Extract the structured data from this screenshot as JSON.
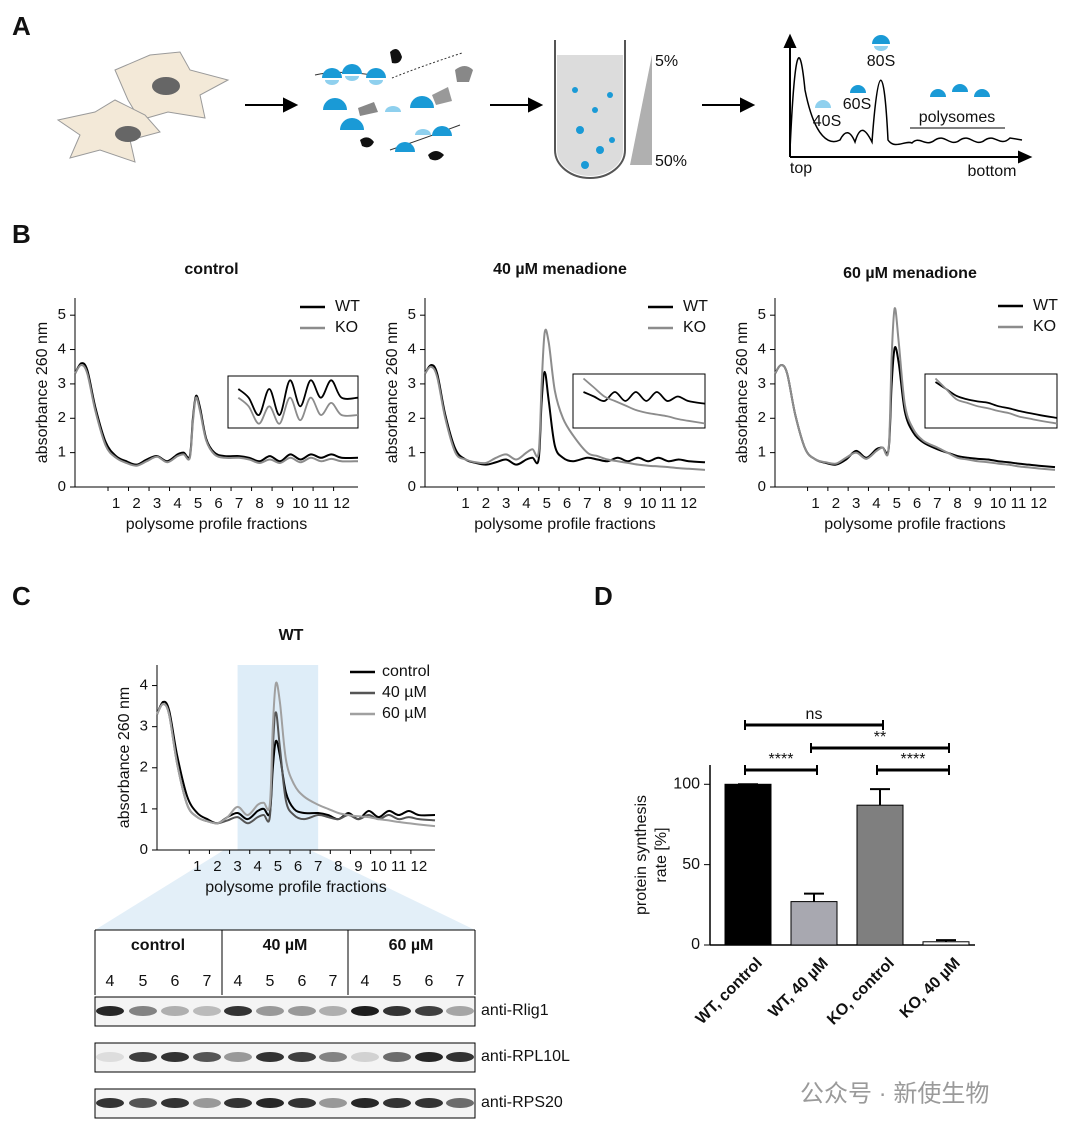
{
  "panel_labels": [
    "A",
    "B",
    "C",
    "D"
  ],
  "schematic": {
    "gradient_top": "5%",
    "gradient_bottom": "50%",
    "peaks": [
      "40S",
      "60S",
      "80S"
    ],
    "polysomes": "polysomes",
    "axis_start": "top",
    "axis_end": "bottom"
  },
  "chart_data": [
    {
      "type": "line",
      "title": "control",
      "xlabel": "polysome profile fractions",
      "ylabel": "absorbance 260 nm",
      "legend": "upper right",
      "inset_xlim": [
        6.5,
        12.8
      ],
      "x": [
        -1,
        -0.7,
        -0.4,
        0,
        0.5,
        1,
        1.5,
        2,
        2.5,
        3,
        3.5,
        4,
        4.3,
        4.6,
        4.75,
        4.9,
        5.1,
        5.4,
        5.8,
        6.3,
        7,
        7.5,
        8,
        8.5,
        9,
        9.5,
        10,
        10.5,
        11,
        11.5,
        12,
        12.8
      ],
      "series": [
        {
          "name": "WT",
          "color": "#000000",
          "values": [
            3.3,
            3.6,
            3.4,
            2.3,
            1.3,
            0.9,
            0.75,
            0.65,
            0.8,
            0.9,
            0.75,
            0.95,
            1.0,
            0.9,
            2.0,
            2.65,
            2.3,
            1.4,
            1.0,
            0.9,
            0.9,
            0.85,
            0.75,
            0.9,
            0.75,
            0.95,
            0.8,
            0.95,
            0.85,
            0.95,
            0.85,
            0.85
          ]
        },
        {
          "name": "KO",
          "color": "#8c8c8c",
          "values": [
            3.3,
            3.55,
            3.3,
            2.2,
            1.2,
            0.85,
            0.7,
            0.62,
            0.75,
            0.88,
            0.72,
            0.9,
            0.95,
            0.85,
            1.9,
            2.6,
            2.2,
            1.35,
            0.95,
            0.85,
            0.85,
            0.8,
            0.7,
            0.8,
            0.7,
            0.85,
            0.72,
            0.85,
            0.75,
            0.82,
            0.75,
            0.75
          ]
        }
      ],
      "xlim": [
        -1,
        12.8
      ],
      "ylim": [
        0,
        5.5
      ],
      "xticks": [
        1,
        2,
        3,
        4,
        5,
        6,
        7,
        8,
        9,
        10,
        11,
        12
      ],
      "yticks": [
        0,
        1,
        2,
        3,
        4,
        5
      ]
    },
    {
      "type": "line",
      "title": "40 µM menadione",
      "xlabel": "polysome profile fractions",
      "ylabel": "absorbance 260 nm",
      "legend": "upper right",
      "inset_xlim": [
        6.5,
        12.8
      ],
      "x": [
        -1,
        -0.7,
        -0.4,
        0,
        0.5,
        1,
        1.5,
        2,
        2.5,
        3,
        3.5,
        4,
        4.3,
        4.6,
        4.75,
        4.9,
        5.1,
        5.4,
        5.8,
        6.3,
        7,
        7.5,
        8,
        8.5,
        9,
        9.5,
        10,
        10.5,
        11,
        11.5,
        12,
        12.8
      ],
      "series": [
        {
          "name": "WT",
          "color": "#000000",
          "values": [
            3.3,
            3.55,
            3.3,
            2.1,
            1.1,
            0.8,
            0.7,
            0.65,
            0.72,
            0.8,
            0.65,
            0.8,
            0.85,
            0.8,
            2.5,
            3.35,
            2.5,
            1.2,
            0.85,
            0.75,
            0.85,
            0.8,
            0.75,
            0.85,
            0.75,
            0.85,
            0.75,
            0.85,
            0.75,
            0.8,
            0.75,
            0.72
          ]
        },
        {
          "name": "KO",
          "color": "#8c8c8c",
          "values": [
            3.3,
            3.5,
            3.2,
            2.0,
            1.0,
            0.8,
            0.72,
            0.7,
            0.85,
            0.95,
            0.8,
            1.0,
            1.1,
            1.0,
            3.0,
            4.5,
            4.2,
            2.8,
            2.0,
            1.5,
            1.0,
            0.9,
            0.8,
            0.75,
            0.7,
            0.65,
            0.62,
            0.6,
            0.58,
            0.55,
            0.53,
            0.5
          ]
        }
      ],
      "xlim": [
        -1,
        12.8
      ],
      "ylim": [
        0,
        5.5
      ],
      "xticks": [
        1,
        2,
        3,
        4,
        5,
        6,
        7,
        8,
        9,
        10,
        11,
        12
      ],
      "yticks": [
        0,
        1,
        2,
        3,
        4,
        5
      ]
    },
    {
      "type": "line",
      "title": "60 µM menadione",
      "xlabel": "polysome profile fractions",
      "ylabel": "absorbance 260 nm",
      "legend": "upper right",
      "inset_xlim": [
        6.5,
        12.8
      ],
      "x": [
        -1,
        -0.7,
        -0.4,
        0,
        0.5,
        1,
        1.5,
        2,
        2.5,
        3,
        3.5,
        4,
        4.3,
        4.6,
        4.75,
        4.9,
        5.1,
        5.4,
        5.8,
        6.3,
        7,
        7.5,
        8,
        8.5,
        9,
        9.5,
        10,
        10.5,
        11,
        11.5,
        12,
        12.8
      ],
      "series": [
        {
          "name": "WT",
          "color": "#000000",
          "values": [
            3.3,
            3.55,
            3.3,
            2.1,
            1.1,
            0.8,
            0.7,
            0.65,
            0.8,
            1.05,
            0.85,
            1.1,
            1.15,
            1.1,
            3.0,
            4.05,
            3.6,
            2.2,
            1.6,
            1.3,
            1.1,
            1.0,
            0.9,
            0.85,
            0.82,
            0.8,
            0.75,
            0.72,
            0.68,
            0.65,
            0.62,
            0.58
          ]
        },
        {
          "name": "KO",
          "color": "#8c8c8c",
          "values": [
            3.3,
            3.55,
            3.3,
            2.1,
            1.1,
            0.8,
            0.72,
            0.68,
            0.85,
            1.0,
            0.82,
            1.05,
            1.15,
            1.1,
            3.8,
            5.2,
            4.2,
            2.4,
            1.7,
            1.35,
            1.15,
            1.0,
            0.85,
            0.8,
            0.75,
            0.72,
            0.68,
            0.65,
            0.6,
            0.57,
            0.54,
            0.5
          ]
        }
      ],
      "xlim": [
        -1,
        12.8
      ],
      "ylim": [
        0,
        5.5
      ],
      "xticks": [
        1,
        2,
        3,
        4,
        5,
        6,
        7,
        8,
        9,
        10,
        11,
        12
      ],
      "yticks": [
        0,
        1,
        2,
        3,
        4,
        5
      ]
    },
    {
      "type": "line",
      "title": "WT",
      "xlabel": "polysome profile fractions",
      "ylabel": "absorbance 260 nm",
      "legend": "upper right",
      "highlight": [
        3,
        7
      ],
      "x": [
        -1,
        -0.7,
        -0.4,
        0,
        0.5,
        1,
        1.5,
        2,
        2.5,
        3,
        3.5,
        4,
        4.3,
        4.6,
        4.75,
        4.9,
        5.1,
        5.4,
        5.8,
        6.3,
        7,
        7.5,
        8,
        8.5,
        9,
        9.5,
        10,
        10.5,
        11,
        11.5,
        12,
        12.8
      ],
      "series": [
        {
          "name": "control",
          "color": "#000000",
          "values": [
            3.3,
            3.6,
            3.4,
            2.3,
            1.3,
            0.9,
            0.75,
            0.65,
            0.8,
            0.9,
            0.75,
            0.95,
            1.0,
            0.9,
            2.0,
            2.65,
            2.3,
            1.4,
            1.0,
            0.9,
            0.9,
            0.85,
            0.75,
            0.9,
            0.75,
            0.95,
            0.8,
            0.95,
            0.85,
            0.95,
            0.85,
            0.85
          ]
        },
        {
          "name": "40 µM",
          "color": "#555555",
          "values": [
            3.3,
            3.55,
            3.3,
            2.1,
            1.1,
            0.8,
            0.7,
            0.65,
            0.72,
            0.8,
            0.65,
            0.8,
            0.85,
            0.8,
            2.5,
            3.35,
            2.5,
            1.2,
            0.85,
            0.75,
            0.85,
            0.8,
            0.75,
            0.85,
            0.75,
            0.85,
            0.75,
            0.85,
            0.75,
            0.8,
            0.75,
            0.72
          ]
        },
        {
          "name": "60 µM",
          "color": "#a0a0a0",
          "values": [
            3.3,
            3.55,
            3.3,
            2.1,
            1.1,
            0.8,
            0.7,
            0.65,
            0.8,
            1.05,
            0.85,
            1.1,
            1.15,
            1.1,
            3.0,
            4.05,
            3.6,
            2.2,
            1.6,
            1.3,
            1.1,
            1.0,
            0.9,
            0.85,
            0.82,
            0.8,
            0.75,
            0.72,
            0.68,
            0.65,
            0.62,
            0.58
          ]
        }
      ],
      "xlim": [
        -1,
        12.8
      ],
      "ylim": [
        0,
        4.5
      ],
      "xticks": [
        1,
        2,
        3,
        4,
        5,
        6,
        7,
        8,
        9,
        10,
        11,
        12
      ],
      "yticks": [
        0,
        1,
        2,
        3,
        4
      ]
    },
    {
      "type": "bar",
      "ylabel": [
        "protein synthesis",
        "rate [%]"
      ],
      "categories": [
        "WT, control",
        "WT, 40 µM",
        "KO, control",
        "KO, 40 µM"
      ],
      "values": [
        100,
        27,
        87,
        2
      ],
      "errors": [
        0,
        5,
        10,
        1
      ],
      "colors": [
        "#000000",
        "#a8a8b0",
        "#7f7f7f",
        "#ffffff"
      ],
      "ylim": [
        0,
        112
      ],
      "yticks": [
        0,
        50,
        100
      ],
      "significance": [
        {
          "from": 0,
          "to": 2,
          "label": "ns"
        },
        {
          "from": 1,
          "to": 3,
          "label": "**"
        },
        {
          "from": 0,
          "to": 1,
          "label": "****"
        },
        {
          "from": 2,
          "to": 3,
          "label": "****"
        }
      ]
    }
  ],
  "blot": {
    "groups": [
      "control",
      "40 µM",
      "60 µM"
    ],
    "lanes": [
      "4",
      "5",
      "6",
      "7",
      "4",
      "5",
      "6",
      "7",
      "4",
      "5",
      "6",
      "7"
    ],
    "antibodies": [
      "anti-Rlig1",
      "anti-RPL10L",
      "anti-RPS20"
    ]
  },
  "watermark": "公众号 · 新使生物"
}
